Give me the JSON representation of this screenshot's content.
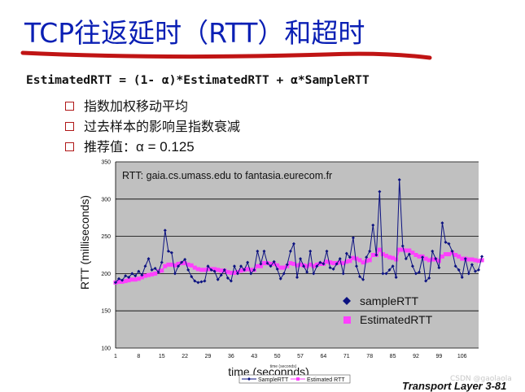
{
  "slide": {
    "title": "TCP往返延时（RTT）和超时",
    "formula": "EstimatedRTT = (1- α)*EstimatedRTT + α*SampleRTT",
    "bullets": [
      "指数加权移动平均",
      "过去样本的影响呈指数衰减"
    ],
    "bullet3_prefix": "推荐值：",
    "bullet3_value": "α = 0.125",
    "footer": "Transport Layer   3-81",
    "watermark": "CSDN @gaolaola"
  },
  "colors": {
    "title": "#0a1fb4",
    "underline": "#c01414",
    "bullet_box": "#b01818",
    "plot_bg": "#c0c0c0",
    "sample_series": "#0b1180",
    "estimated_series": "#ff40ff"
  },
  "chart_data": {
    "type": "line",
    "title": "RTT: gaia.cs.umass.edu to fantasia.eurecom.fr",
    "xlabel": "time (seconnds)",
    "ylabel": "RTT (milliseconds)",
    "inner_xlabel": "time (seconds)",
    "ylim": [
      100,
      350
    ],
    "yticks": [
      100,
      150,
      200,
      250,
      300,
      350
    ],
    "xticks": [
      1,
      8,
      15,
      22,
      29,
      36,
      43,
      50,
      57,
      64,
      71,
      78,
      85,
      92,
      99,
      106
    ],
    "xlim": [
      1,
      111
    ],
    "grid": "horizontal",
    "legend_placement": "lower-center",
    "legend_outer_placement": "bottom",
    "series": [
      {
        "name": "sampleRTT",
        "legend_name_small": "SampleRTT",
        "marker": "diamond",
        "values": [
          188,
          193,
          191,
          197,
          195,
          200,
          197,
          203,
          198,
          210,
          220,
          205,
          207,
          202,
          215,
          258,
          230,
          228,
          200,
          210,
          215,
          219,
          205,
          196,
          190,
          188,
          189,
          190,
          210,
          205,
          203,
          192,
          198,
          205,
          194,
          190,
          210,
          200,
          210,
          205,
          215,
          200,
          205,
          230,
          213,
          230,
          214,
          210,
          216,
          206,
          193,
          200,
          212,
          230,
          240,
          195,
          220,
          210,
          202,
          230,
          200,
          210,
          215,
          213,
          230,
          208,
          206,
          213,
          220,
          200,
          227,
          222,
          248,
          210,
          196,
          192,
          222,
          230,
          265,
          225,
          310,
          200,
          200,
          205,
          210,
          195,
          326,
          237,
          220,
          226,
          210,
          200,
          202,
          222,
          190,
          194,
          230,
          220,
          208,
          268,
          242,
          240,
          230,
          210,
          205,
          195,
          220,
          200,
          212,
          203,
          205,
          223
        ]
      },
      {
        "name": "EstimatedRTT",
        "legend_name_small": "Estimated RTT",
        "marker": "square",
        "values": [
          188,
          189,
          189,
          190,
          191,
          192,
          192,
          193,
          195,
          197,
          198,
          199,
          200,
          203,
          204,
          210,
          212,
          212,
          211,
          213,
          214,
          214,
          212,
          211,
          208,
          206,
          205,
          205,
          206,
          206,
          206,
          205,
          204,
          204,
          202,
          201,
          201,
          202,
          204,
          205,
          206,
          205,
          205,
          210,
          210,
          214,
          214,
          213,
          213,
          211,
          208,
          208,
          210,
          214,
          213,
          211,
          212,
          211,
          210,
          212,
          210,
          212,
          213,
          213,
          216,
          215,
          214,
          214,
          215,
          214,
          216,
          217,
          221,
          220,
          218,
          215,
          217,
          218,
          225,
          225,
          232,
          226,
          224,
          222,
          221,
          219,
          232,
          232,
          231,
          231,
          228,
          225,
          223,
          223,
          220,
          218,
          219,
          219,
          217,
          223,
          226,
          226,
          228,
          225,
          223,
          220,
          220,
          219,
          219,
          218,
          217,
          218
        ]
      }
    ]
  }
}
